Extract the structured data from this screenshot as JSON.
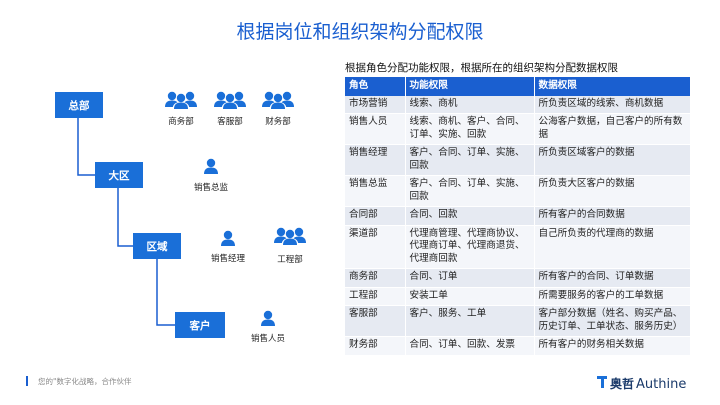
{
  "title": "根据岗位和组织架构分配权限",
  "org": {
    "nodes": [
      "总部",
      "大区",
      "区域",
      "客户"
    ],
    "roles": [
      "商务部",
      "客服部",
      "财务部",
      "销售总监",
      "销售经理",
      "工程部",
      "销售人员"
    ]
  },
  "table": {
    "caption": "根据角色分配功能权限，根据所在的组织架构分配数据权限",
    "header": [
      "角色",
      "功能权限",
      "数据权限"
    ],
    "rows": [
      [
        "市场营销",
        "线索、商机",
        "所负责区域的线索、商机数据"
      ],
      [
        "销售人员",
        "线索、商机、客户、合同、订单、实施、回款",
        "公海客户数据，自己客户的所有数据"
      ],
      [
        "销售经理",
        "客户、合同、订单、实施、回款",
        "所负责区域客户的数据"
      ],
      [
        "销售总监",
        "客户、合同、订单、实施、回款",
        "所负责大区客户的数据"
      ],
      [
        "合同部",
        "合同、回款",
        "所有客户的合同数据"
      ],
      [
        "渠道部",
        "代理商管理、代理商协议、代理商订单、代理商退货、代理商回款",
        "自己所负责的代理商的数据"
      ],
      [
        "商务部",
        "合同、订单",
        "所有客户的合同、订单数据"
      ],
      [
        "工程部",
        "安装工单",
        "所需要服务的客户的工单数据"
      ],
      [
        "客服部",
        "客户、服务、工单",
        "客户部分数据（姓名、购买产品、历史订单、工单状态、服务历史）"
      ],
      [
        "财务部",
        "合同、订单、回款、发票",
        "所有客户的财务相关数据"
      ]
    ]
  },
  "footer": {
    "slogan": "您的\"数字化战略，合作伙伴",
    "logo_cn": "奥哲",
    "logo_en": "Authine"
  }
}
